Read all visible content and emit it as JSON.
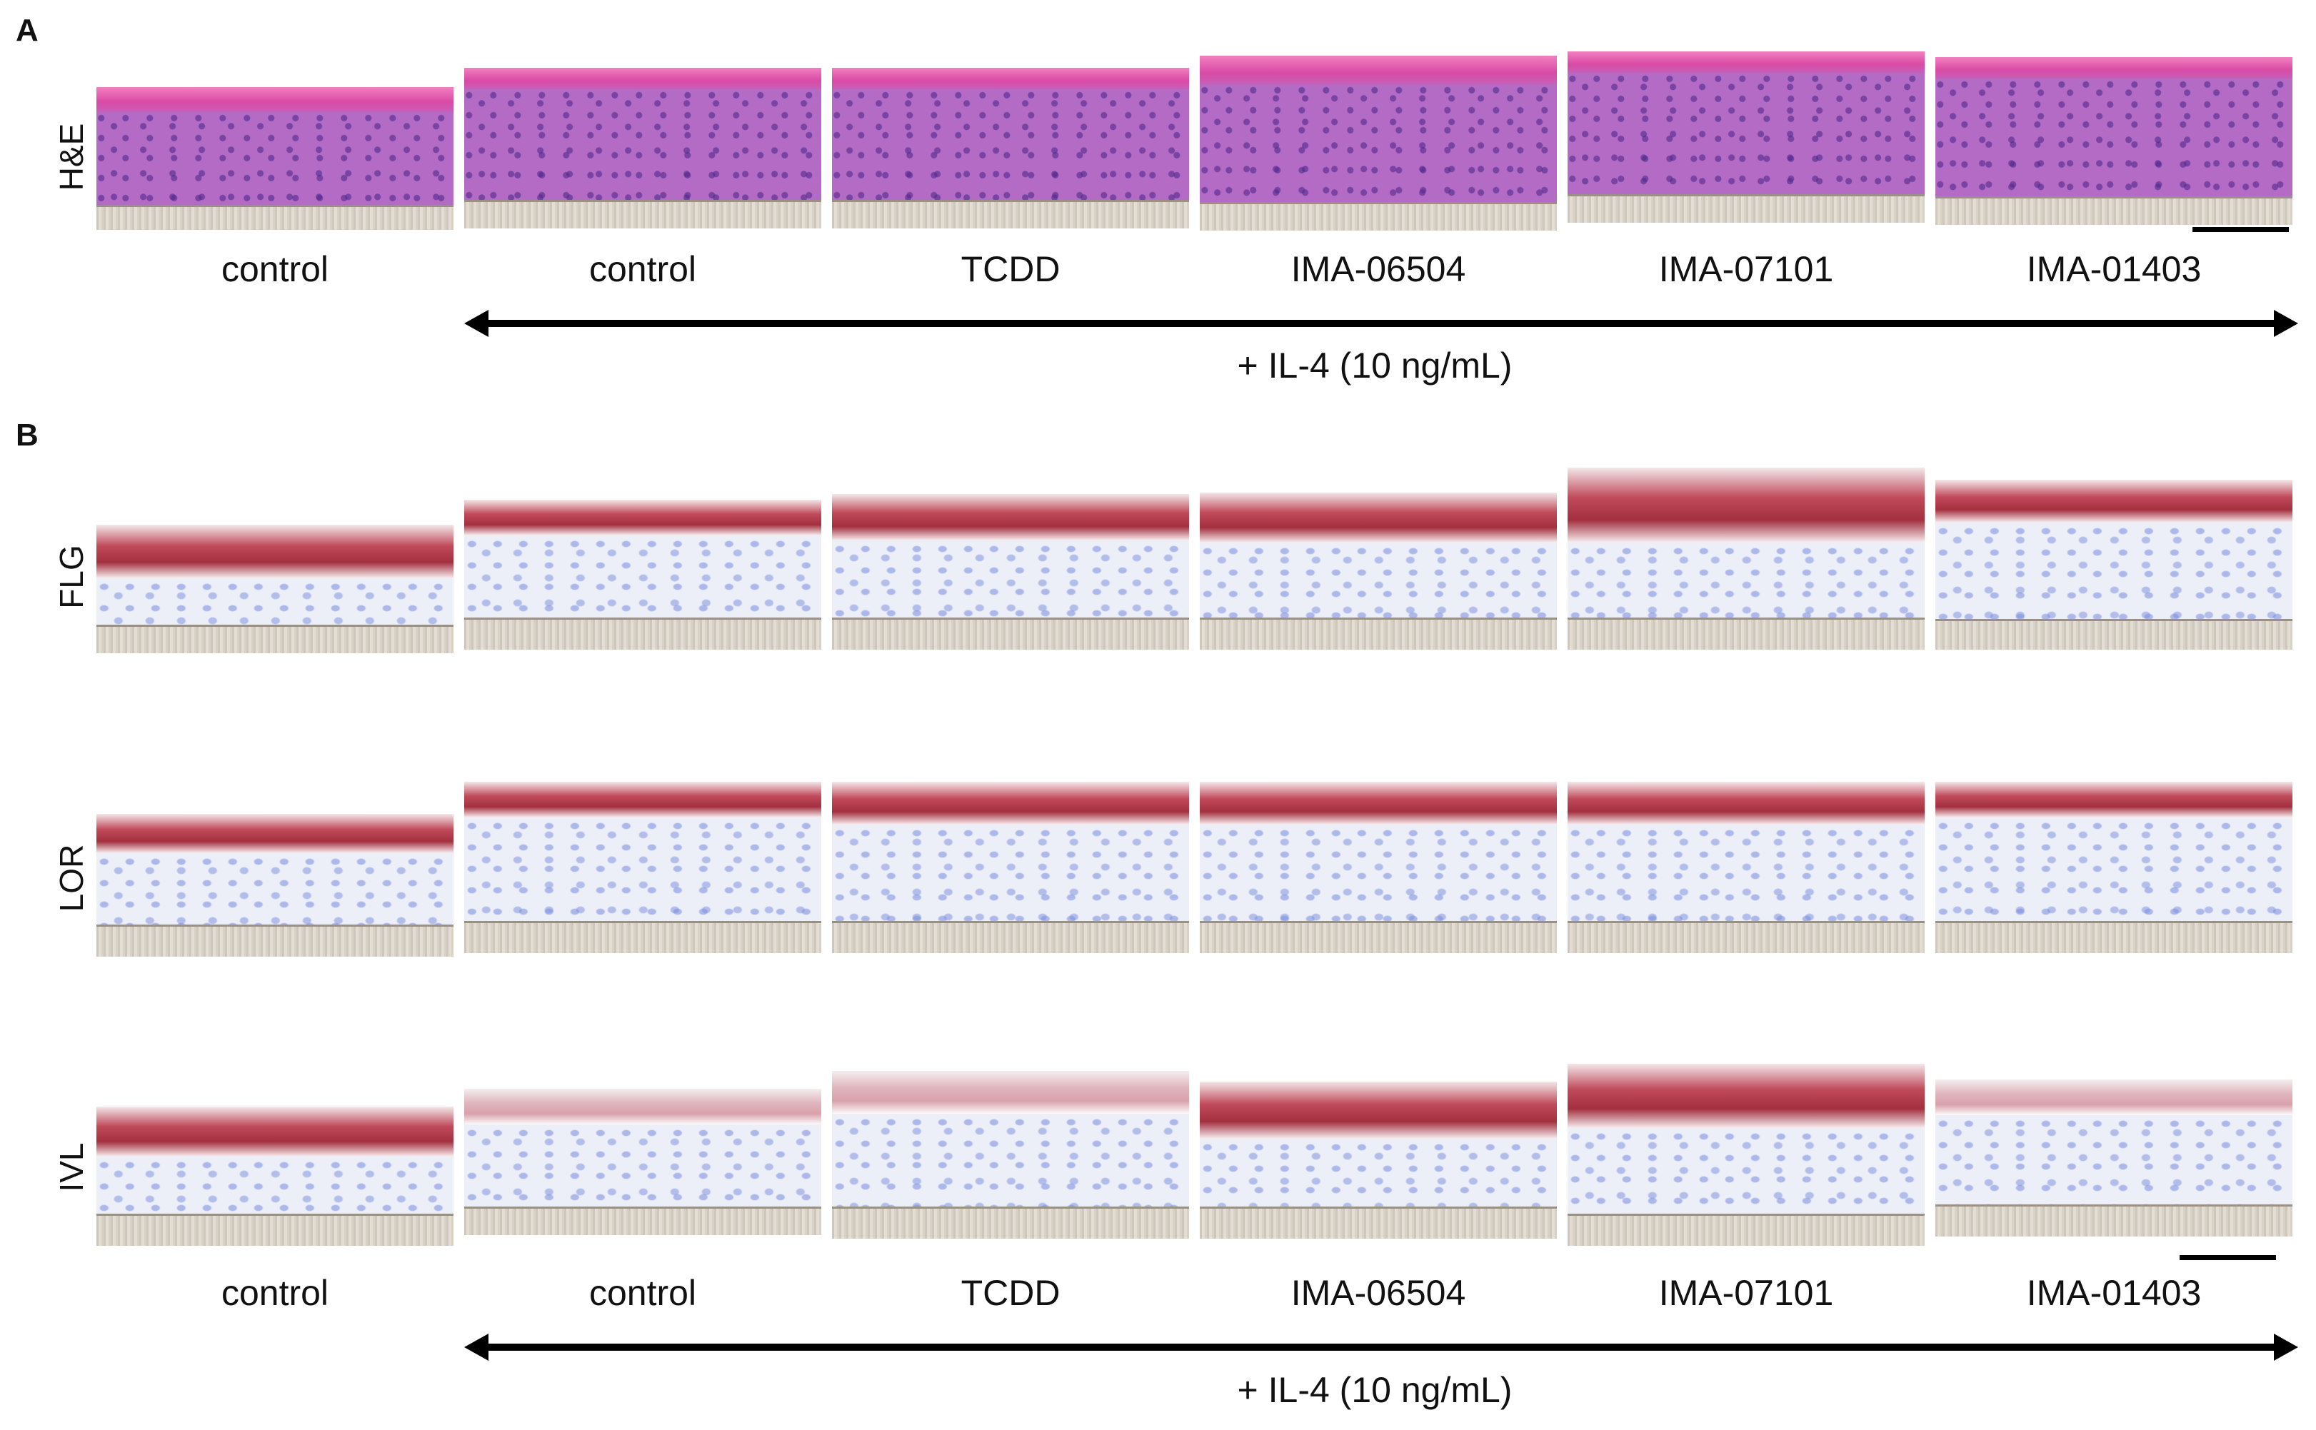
{
  "panels": {
    "a": {
      "letter": "A"
    },
    "b": {
      "letter": "B"
    }
  },
  "rows": {
    "he": "H&E",
    "flg": "FLG",
    "lor": "LOR",
    "ivl": "IVL"
  },
  "columns": [
    "control",
    "control",
    "TCDD",
    "IMA-06504",
    "IMA-07101",
    "IMA-01403"
  ],
  "treatment": "+ IL-4 (10 ng/mL)",
  "colors": {
    "hematoxylin_eosin_purple": "#b36bc6",
    "eosin_pink": "#d94aa5",
    "dab_red_stain": "#a3303f",
    "counterstain_blue": "#8c9be0",
    "membrane_gray": "#d8d1c6"
  }
}
